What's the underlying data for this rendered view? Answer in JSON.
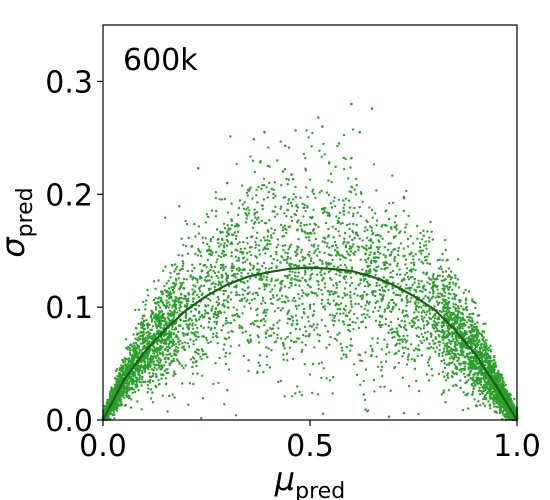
{
  "chart_data": {
    "type": "scatter",
    "annotation": "600k",
    "xlabel": {
      "symbol": "μ",
      "subscript": "pred"
    },
    "ylabel": {
      "symbol": "σ",
      "subscript": "pred"
    },
    "xlim": [
      0.0,
      1.0
    ],
    "ylim": [
      0.0,
      0.35
    ],
    "x_ticks": [
      {
        "value": 0.0,
        "label": "0.0"
      },
      {
        "value": 0.5,
        "label": "0.5"
      },
      {
        "value": 1.0,
        "label": "1.0"
      }
    ],
    "y_ticks": [
      {
        "value": 0.0,
        "label": "0.0"
      },
      {
        "value": 0.1,
        "label": "0.1"
      },
      {
        "value": 0.2,
        "label": "0.2"
      },
      {
        "value": 0.3,
        "label": "0.3"
      }
    ],
    "grid": false,
    "colors": {
      "points": "#2ca02c",
      "trend": "#1a5e1a"
    },
    "points_summary": {
      "count_approx": 6000,
      "shape": "inverted parabola, dense near x=0 and x=1, spread widest around x=0.5"
    },
    "trend_line": {
      "x": [
        0.0,
        0.05,
        0.1,
        0.15,
        0.2,
        0.25,
        0.3,
        0.35,
        0.4,
        0.45,
        0.5,
        0.55,
        0.6,
        0.65,
        0.7,
        0.75,
        0.8,
        0.85,
        0.9,
        0.95,
        1.0
      ],
      "y": [
        0.0,
        0.035,
        0.06,
        0.08,
        0.097,
        0.11,
        0.12,
        0.127,
        0.131,
        0.134,
        0.135,
        0.134,
        0.132,
        0.127,
        0.12,
        0.11,
        0.098,
        0.08,
        0.058,
        0.03,
        0.0
      ]
    },
    "outliers": [
      {
        "x": 0.23,
        "y": 0.223
      },
      {
        "x": 0.39,
        "y": 0.255
      },
      {
        "x": 0.44,
        "y": 0.243
      },
      {
        "x": 0.52,
        "y": 0.268
      },
      {
        "x": 0.53,
        "y": 0.26
      },
      {
        "x": 0.6,
        "y": 0.28
      },
      {
        "x": 0.62,
        "y": 0.255
      },
      {
        "x": 0.65,
        "y": 0.276
      },
      {
        "x": 0.6,
        "y": 0.232
      },
      {
        "x": 0.3,
        "y": 0.21
      },
      {
        "x": 0.57,
        "y": 0.245
      }
    ]
  }
}
